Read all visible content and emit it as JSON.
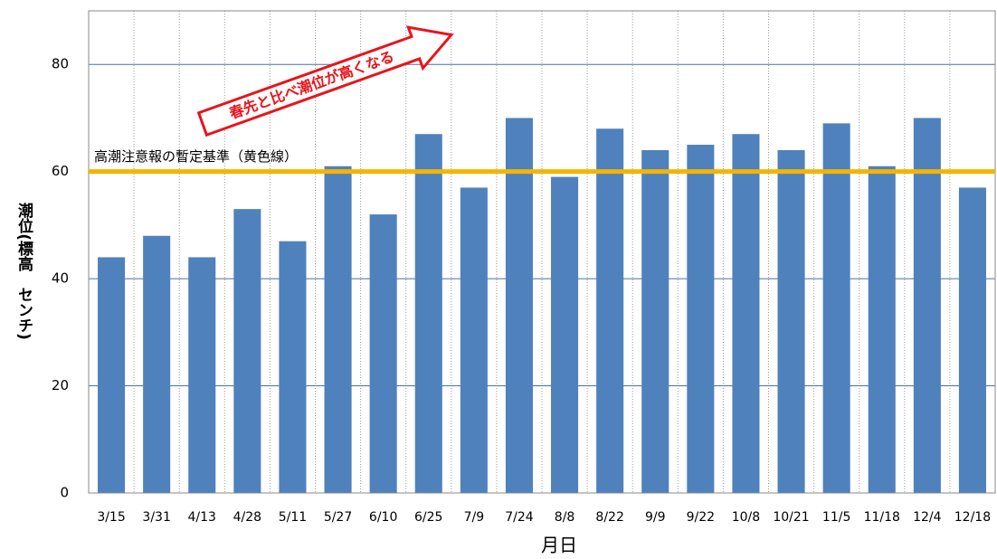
{
  "chart_data": {
    "type": "bar",
    "categories": [
      "3/15",
      "3/31",
      "4/13",
      "4/28",
      "5/11",
      "5/27",
      "6/10",
      "6/25",
      "7/9",
      "7/24",
      "8/8",
      "8/22",
      "9/9",
      "9/22",
      "10/8",
      "10/21",
      "11/5",
      "11/18",
      "12/4",
      "12/18"
    ],
    "values": [
      44,
      48,
      44,
      53,
      47,
      61,
      52,
      67,
      57,
      70,
      59,
      68,
      64,
      65,
      67,
      64,
      69,
      61,
      70,
      57
    ],
    "color": "#4f81bd",
    "ylim": [
      0,
      90
    ],
    "yticks": [
      0,
      20,
      40,
      60,
      80
    ],
    "grid": true,
    "x_label": "月日",
    "y_label": "潮位(標高　センチ)",
    "threshold": {
      "value": 60,
      "label": "高潮注意報の暫定基準（黄色線）",
      "color": "#f5b400"
    },
    "annotation": "春先と比べ潮位が高くなる"
  }
}
